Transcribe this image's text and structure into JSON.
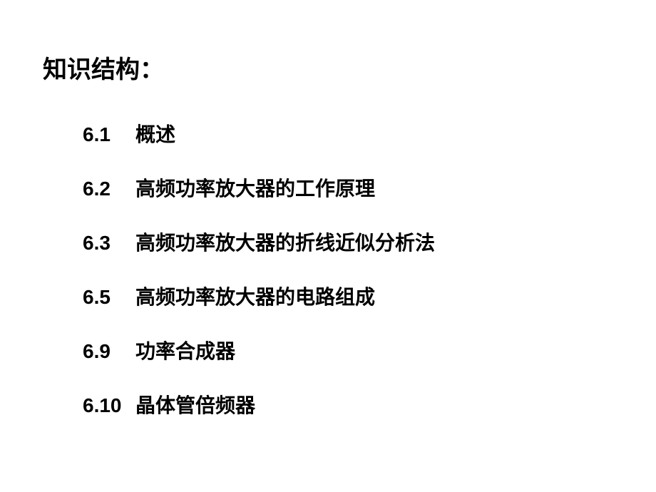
{
  "heading": "知识结构：",
  "text_color": "#000000",
  "background_color": "#ffffff",
  "heading_fontsize": 34,
  "item_fontsize": 28,
  "toc_items": [
    {
      "number": "6.1",
      "title": "概述"
    },
    {
      "number": "6.2",
      "title": "高频功率放大器的工作原理"
    },
    {
      "number": "6.3",
      "title": "高频功率放大器的折线近似分析法"
    },
    {
      "number": "6.5",
      "title": "高频功率放大器的电路组成"
    },
    {
      "number": "6.9",
      "title": "功率合成器"
    },
    {
      "number": "6.10",
      "title": "晶体管倍频器"
    }
  ]
}
